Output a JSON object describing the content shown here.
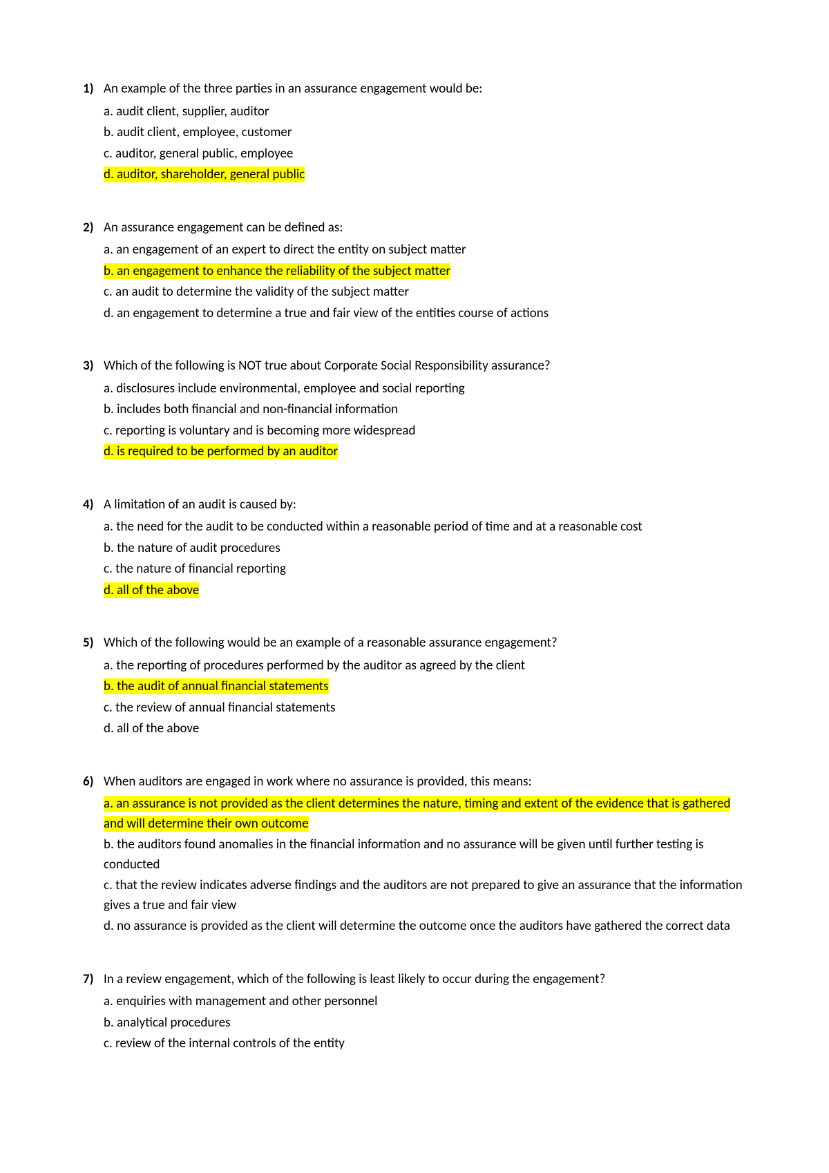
{
  "highlight_color": "#ffff00",
  "text_color": "#000000",
  "background_color": "#ffffff",
  "font_size": 19,
  "questions": [
    {
      "number": "1)",
      "text": "An example of the three parties in an assurance engagement would be:",
      "options": [
        {
          "label": "a. audit client, supplier, auditor",
          "highlighted": false
        },
        {
          "label": "b. audit client, employee, customer",
          "highlighted": false
        },
        {
          "label": "c. auditor, general public, employee",
          "highlighted": false
        },
        {
          "label": "d. auditor, shareholder, general public",
          "highlighted": true
        }
      ]
    },
    {
      "number": "2)",
      "text": "An assurance engagement can be defined as:",
      "options": [
        {
          "label": "a. an engagement of an expert to direct the entity on subject matter",
          "highlighted": false
        },
        {
          "label": "b. an engagement to enhance the reliability of the subject matter",
          "highlighted": true
        },
        {
          "label": "c. an audit to determine the validity of the subject matter",
          "highlighted": false
        },
        {
          "label": "d. an engagement to determine a true and fair view of the entities course of actions",
          "highlighted": false
        }
      ]
    },
    {
      "number": "3)",
      "text": "Which of the following is NOT true about Corporate Social Responsibility assurance?",
      "options": [
        {
          "label": "a. disclosures include environmental, employee and social reporting",
          "highlighted": false
        },
        {
          "label": "b. includes both financial and non-financial information",
          "highlighted": false
        },
        {
          "label": "c. reporting is voluntary and is becoming more widespread",
          "highlighted": false
        },
        {
          "label": "d. is required to be performed by an auditor",
          "highlighted": true
        }
      ]
    },
    {
      "number": "4)",
      "text": "A limitation of an audit is caused by:",
      "options": [
        {
          "label": "a. the need for the audit to be conducted within a reasonable period of time and at a reasonable cost",
          "highlighted": false
        },
        {
          "label": "b. the nature of audit procedures",
          "highlighted": false
        },
        {
          "label": "c. the nature of financial reporting",
          "highlighted": false
        },
        {
          "label": "d. all of the above",
          "highlighted": true
        }
      ]
    },
    {
      "number": "5)",
      "text": "Which of the following would be an example of a reasonable assurance engagement?",
      "options": [
        {
          "label": "a. the reporting of procedures performed by the auditor as agreed by the client",
          "highlighted": false
        },
        {
          "label": "b. the audit of annual financial statements",
          "highlighted": true
        },
        {
          "label": "c. the review of annual financial statements",
          "highlighted": false
        },
        {
          "label": "d. all of the above",
          "highlighted": false
        }
      ]
    },
    {
      "number": "6)",
      "text": "When auditors are engaged in work where no assurance is provided, this means:",
      "options": [
        {
          "label": "a. an assurance is not provided as the client determines the nature, timing and extent of the evidence that is gathered and will determine their own outcome",
          "highlighted": true
        },
        {
          "label": "b. the auditors found anomalies in the financial information and no assurance will be given until further testing is conducted",
          "highlighted": false
        },
        {
          "label": "c. that the review indicates adverse findings and the auditors are not prepared to give an assurance that the information gives a true and fair view",
          "highlighted": false
        },
        {
          "label": "d. no assurance is provided as the client will determine the outcome once the auditors have gathered the correct data",
          "highlighted": false
        }
      ]
    },
    {
      "number": "7)",
      "text": "In a review engagement, which of the following is least likely to occur during the engagement?",
      "options": [
        {
          "label": "a. enquiries with management and other personnel",
          "highlighted": false
        },
        {
          "label": "b. analytical procedures",
          "highlighted": false
        },
        {
          "label": "c. review of the internal controls of the entity",
          "highlighted": false
        }
      ]
    }
  ]
}
